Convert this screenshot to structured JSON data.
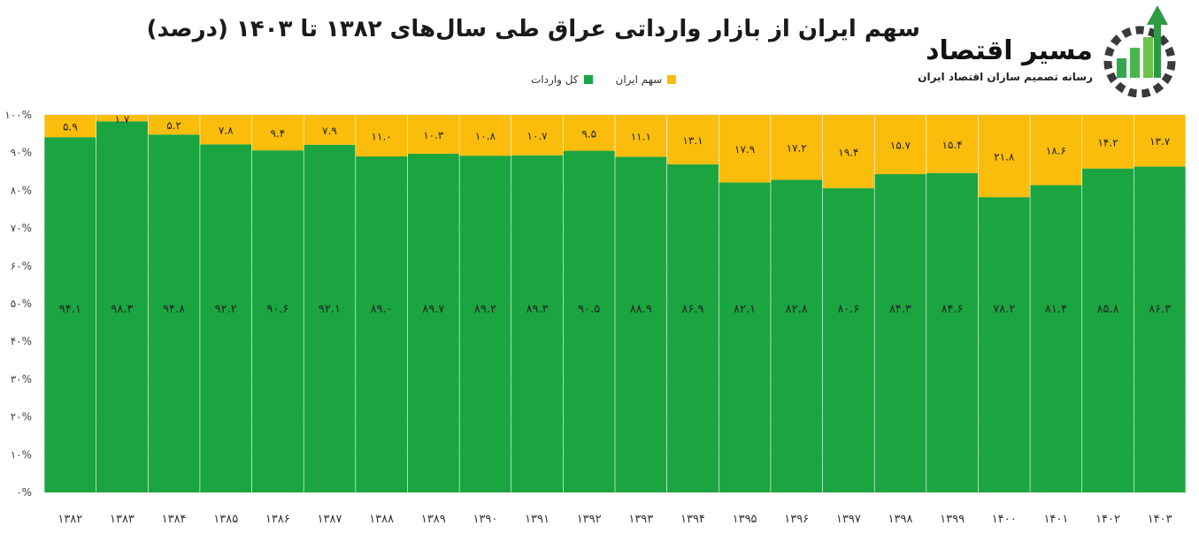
{
  "chart_data": {
    "type": "bar",
    "stacked": true,
    "title": "سهم ایران از بازار وارداتی عراق طی سال‌های ۱۳۸۲ تا ۱۴۰۳ (درصد)",
    "categories": [
      "۱۳۸۲",
      "۱۳۸۳",
      "۱۳۸۴",
      "۱۳۸۵",
      "۱۳۸۶",
      "۱۳۸۷",
      "۱۳۸۸",
      "۱۳۸۹",
      "۱۳۹۰",
      "۱۳۹۱",
      "۱۳۹۲",
      "۱۳۹۳",
      "۱۳۹۴",
      "۱۳۹۵",
      "۱۳۹۶",
      "۱۳۹۷",
      "۱۳۹۸",
      "۱۳۹۹",
      "۱۴۰۰",
      "۱۴۰۱",
      "۱۴۰۲",
      "۱۴۰۳"
    ],
    "series": [
      {
        "name": "کل واردات",
        "color": "#1aa541",
        "values": [
          94.1,
          98.3,
          94.8,
          92.2,
          90.6,
          92.1,
          89.0,
          89.7,
          89.2,
          89.3,
          90.5,
          88.9,
          86.9,
          82.1,
          82.8,
          80.6,
          84.3,
          84.6,
          78.2,
          81.4,
          85.8,
          86.3
        ],
        "labels": [
          "۹۴.۱",
          "۹۸.۳",
          "۹۴.۸",
          "۹۲.۲",
          "۹۰.۶",
          "۹۲.۱",
          "۸۹.۰",
          "۸۹.۷",
          "۸۹.۲",
          "۸۹.۳",
          "۹۰.۵",
          "۸۸.۹",
          "۸۶.۹",
          "۸۲.۱",
          "۸۲.۸",
          "۸۰.۶",
          "۸۴.۳",
          "۸۴.۶",
          "۷۸.۲",
          "۸۱.۴",
          "۸۵.۸",
          "۸۶.۳"
        ]
      },
      {
        "name": "سهم ایران",
        "color": "#fbbd0c",
        "values": [
          5.9,
          1.7,
          5.2,
          7.8,
          9.4,
          7.9,
          11.0,
          10.3,
          10.8,
          10.7,
          9.5,
          11.1,
          13.1,
          17.9,
          17.2,
          19.4,
          15.7,
          15.4,
          21.8,
          18.6,
          14.2,
          13.7
        ],
        "labels": [
          "۵.۹",
          "۱.۷",
          "۵.۲",
          "۷.۸",
          "۹.۴",
          "۷.۹",
          "۱۱.۰",
          "۱۰.۳",
          "۱۰.۸",
          "۱۰.۷",
          "۹.۵",
          "۱۱.۱",
          "۱۳.۱",
          "۱۷.۹",
          "۱۷.۲",
          "۱۹.۴",
          "۱۵.۷",
          "۱۵.۴",
          "۲۱.۸",
          "۱۸.۶",
          "۱۴.۲",
          "۱۳.۷"
        ]
      }
    ],
    "ylim": [
      0,
      100
    ],
    "yticks": [
      "۰%",
      "۱۰%",
      "۲۰%",
      "۳۰%",
      "۴۰%",
      "۵۰%",
      "۶۰%",
      "۷۰%",
      "۸۰%",
      "۹۰%",
      "۱۰۰%"
    ],
    "grid": true,
    "legend": "top"
  },
  "logo": {
    "name": "مسیر اقتصاد",
    "tagline": "رسانه تصمیم سازان اقتصاد ایران"
  }
}
